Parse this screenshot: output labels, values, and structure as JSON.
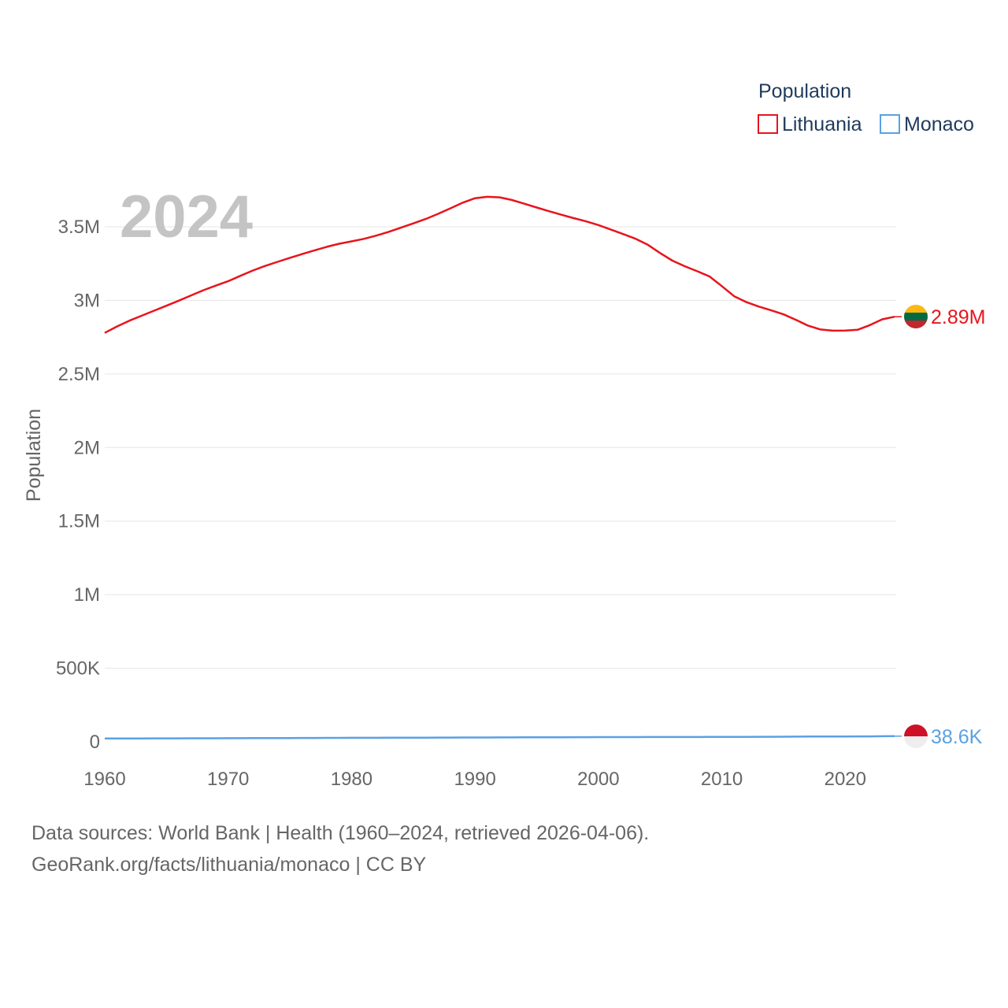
{
  "chart_data": {
    "type": "line",
    "title": "",
    "xlabel": "",
    "ylabel": "Population",
    "xlim": [
      1960,
      2024
    ],
    "ylim": [
      0,
      3750000
    ],
    "x_ticks": [
      1960,
      1970,
      1980,
      1990,
      2000,
      2010,
      2020
    ],
    "x_tick_labels": [
      "1960",
      "1970",
      "1980",
      "1990",
      "2000",
      "2010",
      "2020"
    ],
    "y_ticks": [
      0,
      500000,
      1000000,
      1500000,
      2000000,
      2500000,
      3000000,
      3500000
    ],
    "y_tick_labels": [
      "0",
      "500K",
      "1M",
      "1.5M",
      "2M",
      "2.5M",
      "3M",
      "3.5M"
    ],
    "grid": true,
    "legend_title": "Population",
    "legend_position": "top-right",
    "year_label": "2024",
    "x": [
      1960,
      1961,
      1962,
      1963,
      1964,
      1965,
      1966,
      1967,
      1968,
      1969,
      1970,
      1971,
      1972,
      1973,
      1974,
      1975,
      1976,
      1977,
      1978,
      1979,
      1980,
      1981,
      1982,
      1983,
      1984,
      1985,
      1986,
      1987,
      1988,
      1989,
      1990,
      1991,
      1992,
      1993,
      1994,
      1995,
      1996,
      1997,
      1998,
      1999,
      2000,
      2001,
      2002,
      2003,
      2004,
      2005,
      2006,
      2007,
      2008,
      2009,
      2010,
      2011,
      2012,
      2013,
      2014,
      2015,
      2016,
      2017,
      2018,
      2019,
      2020,
      2021,
      2022,
      2023,
      2024
    ],
    "series": [
      {
        "name": "Lithuania",
        "color": "#e8141c",
        "end_label": "2.89M",
        "values": [
          2779000,
          2823000,
          2862000,
          2896000,
          2930000,
          2964000,
          2998000,
          3034000,
          3069000,
          3100000,
          3130000,
          3167000,
          3203000,
          3234000,
          3262000,
          3289000,
          3315000,
          3340000,
          3364000,
          3385000,
          3401000,
          3418000,
          3440000,
          3466000,
          3494000,
          3523000,
          3553000,
          3588000,
          3625000,
          3664000,
          3694000,
          3704000,
          3700000,
          3682000,
          3657000,
          3631000,
          3606000,
          3582000,
          3559000,
          3537000,
          3512000,
          3482000,
          3451000,
          3419000,
          3378000,
          3322000,
          3270000,
          3232000,
          3198000,
          3163000,
          3097000,
          3028000,
          2988000,
          2958000,
          2932000,
          2905000,
          2868000,
          2828000,
          2802000,
          2794000,
          2795000,
          2800000,
          2832000,
          2871000,
          2889000
        ]
      },
      {
        "name": "Monaco",
        "color": "#5aa1e3",
        "end_label": "38.6K",
        "values": [
          22500,
          22700,
          22900,
          23100,
          23300,
          23500,
          23700,
          23900,
          24100,
          24300,
          24500,
          24800,
          25100,
          25300,
          25500,
          25800,
          26000,
          26300,
          26500,
          26800,
          27100,
          27300,
          27500,
          27700,
          28000,
          28200,
          28500,
          28700,
          29000,
          29200,
          29400,
          29600,
          29900,
          30100,
          30400,
          30700,
          30900,
          31200,
          31400,
          31700,
          32000,
          32200,
          32300,
          32300,
          32400,
          32400,
          32500,
          32600,
          32800,
          33000,
          33200,
          33500,
          33800,
          34100,
          34500,
          34900,
          35300,
          35700,
          36000,
          36300,
          36500,
          36700,
          37000,
          37900,
          38600
        ]
      }
    ]
  },
  "legend": {
    "title": "Population",
    "items": [
      {
        "label": "Lithuania",
        "color": "#e8141c"
      },
      {
        "label": "Monaco",
        "color": "#5aa1e3"
      }
    ]
  },
  "flags": {
    "lithuania": [
      "#fdb913",
      "#006a44",
      "#c1272d"
    ],
    "monaco": [
      "#ce1126",
      "#eeeeee"
    ]
  },
  "footer": {
    "line1": "Data sources: World Bank | Health (1960–2024, retrieved 2026-04-06).",
    "line2": "GeoRank.org/facts/lithuania/monaco | CC BY"
  }
}
